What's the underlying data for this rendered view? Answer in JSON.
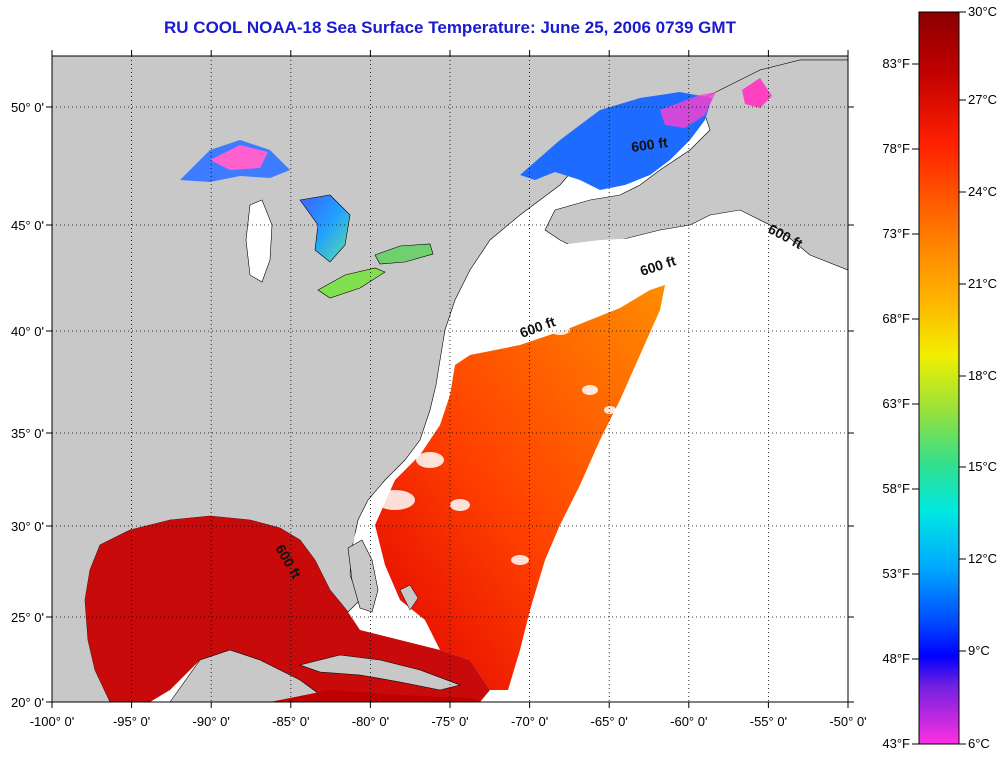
{
  "title": "RU COOL  NOAA-18  Sea Surface Temperature:  June 25, 2006 0739 GMT",
  "map": {
    "lon_labels": [
      "-100° 0'",
      "-95° 0'",
      "-90° 0'",
      "-85° 0'",
      "-80° 0'",
      "-75° 0'",
      "-70° 0'",
      "-65° 0'",
      "-60° 0'",
      "-55° 0'",
      "-50° 0'"
    ],
    "lat_labels": [
      "20° 0'",
      "25° 0'",
      "30° 0'",
      "35° 0'",
      "40° 0'",
      "45° 0'",
      "50° 0'"
    ],
    "contour_labels": [
      "600 ft",
      "600 ft",
      "600 ft",
      "600 ft",
      "600 ft"
    ],
    "land_color": "#c8c8c8",
    "cloud_color": "#ffffff"
  },
  "colorbar": {
    "celsius_labels": [
      "30°C",
      "27°C",
      "24°C",
      "21°C",
      "18°C",
      "15°C",
      "12°C",
      "9°C",
      "6°C"
    ],
    "fahrenheit_labels": [
      "83°F",
      "78°F",
      "73°F",
      "68°F",
      "63°F",
      "58°F",
      "53°F",
      "48°F",
      "43°F"
    ],
    "colors": [
      "#8b0000",
      "#d40000",
      "#ff3c00",
      "#ff8c00",
      "#ffd000",
      "#e8f000",
      "#7ee060",
      "#20e0c0",
      "#00b0ff",
      "#0050ff",
      "#0000ff",
      "#8020e0",
      "#ff20e0"
    ]
  }
}
